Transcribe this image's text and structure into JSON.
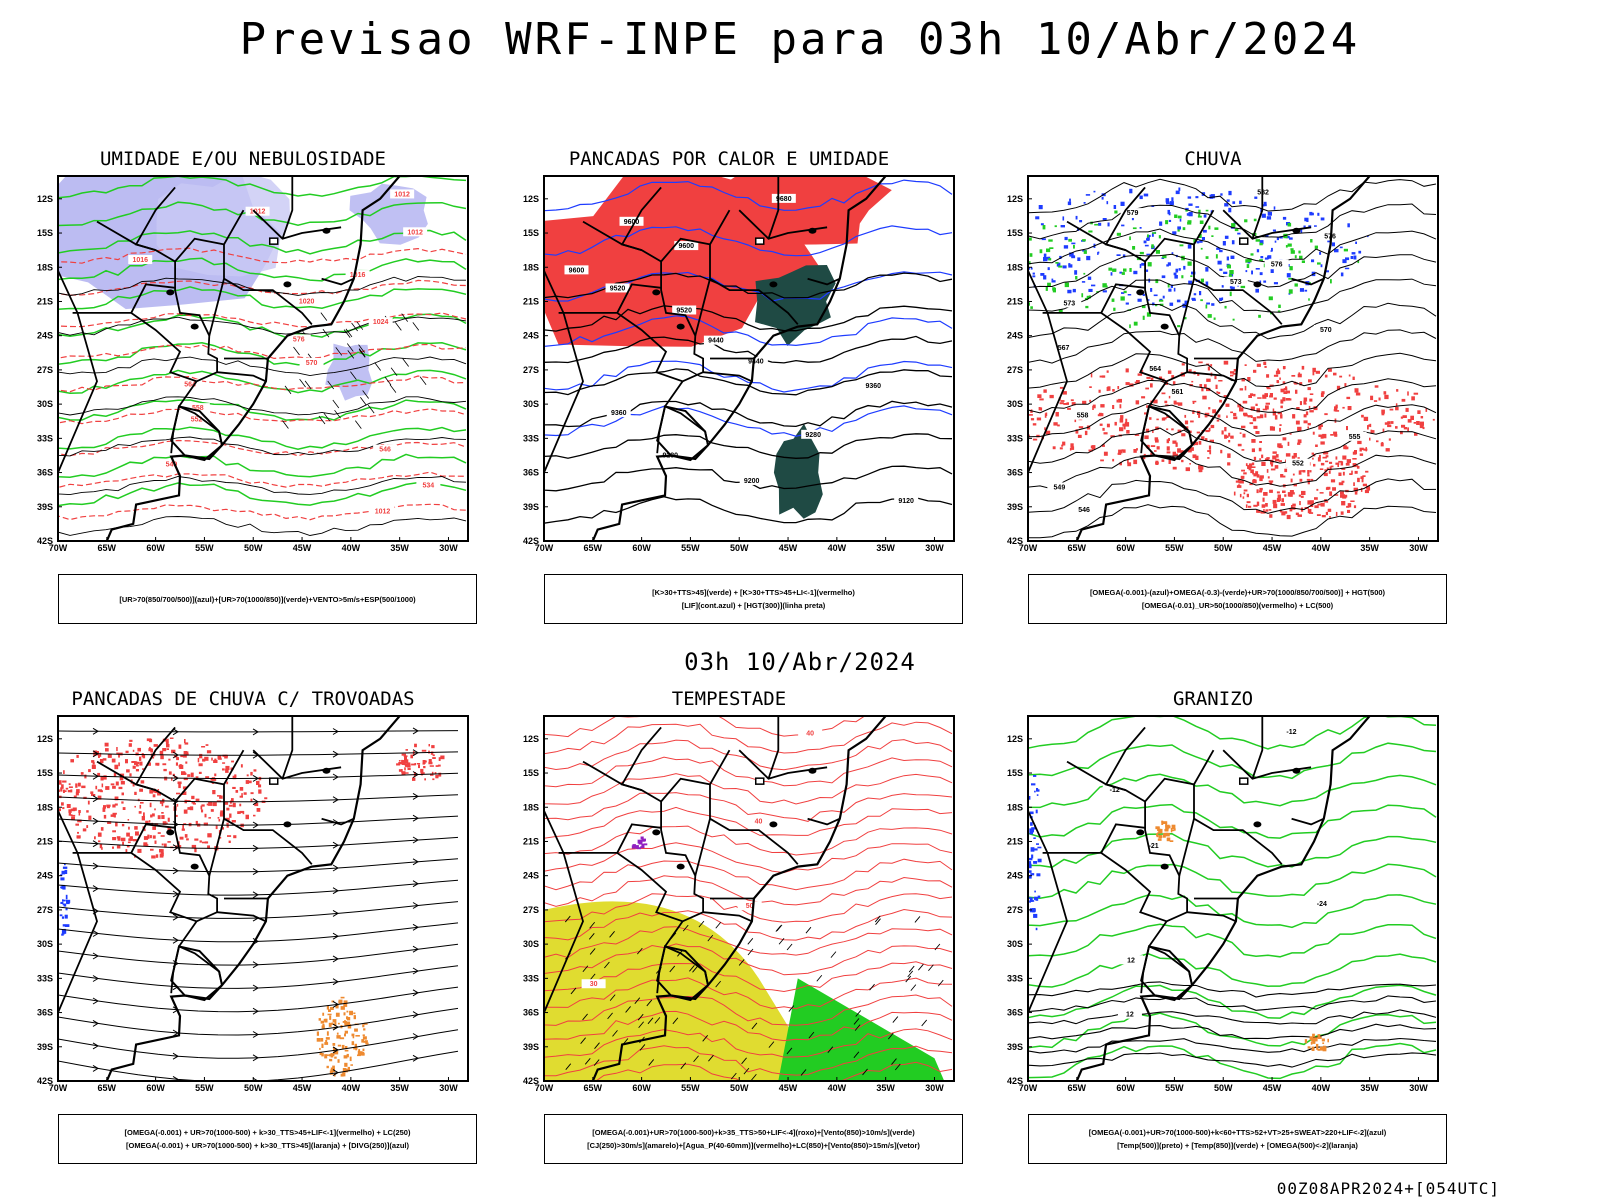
{
  "header": {
    "title": "Previsao WRF-INPE  para 03h 10/Abr/2024",
    "mid_date": "03h 10/Abr/2024",
    "run_info": "00Z08APR2024+[054UTC]"
  },
  "axes": {
    "lat_labels": [
      "12S",
      "15S",
      "18S",
      "21S",
      "24S",
      "27S",
      "30S",
      "33S",
      "36S",
      "39S",
      "42S"
    ],
    "lon_labels": [
      "70W",
      "65W",
      "60W",
      "55W",
      "50W",
      "45W",
      "40W",
      "35W",
      "30W"
    ]
  },
  "colors": {
    "red": "#f04040",
    "green": "#22cc22",
    "blue": "#1e3cff",
    "lavender": "#b0b0f0",
    "yellow": "#e0dc30",
    "darkteal": "#1f4a44",
    "orange": "#ee8a30",
    "purple": "#9020c0"
  },
  "panels": [
    {
      "id": "umidade",
      "title": "UMIDADE E/OU NEBULOSIDADE",
      "legend": [
        "[UR>70(850/700/500)](azul)+[UR>70(1000/850)](verde)+VENTO>5m/s+ESP(500/1000)"
      ],
      "labels": [
        "1012",
        "1012",
        "1012",
        "1016",
        "1016",
        "1020",
        "1024",
        "576",
        "570",
        "564",
        "558",
        "552",
        "546",
        "540",
        "534",
        "1012"
      ]
    },
    {
      "id": "pancadas-calor",
      "title": "PANCADAS POR CALOR E UMIDADE",
      "legend": [
        "[K>30+TTS>45](verde) + [K>30+TTS>45+LI<-1](vermelho)",
        "[LIF](cont.azul) + [HGT(300)](linha preta)"
      ],
      "labels": [
        "9680",
        "9600",
        "9600",
        "9600",
        "9520",
        "9520",
        "9440",
        "9440",
        "9360",
        "9360",
        "9280",
        "9280",
        "9200",
        "9120"
      ]
    },
    {
      "id": "chuva",
      "title": "CHUVA",
      "legend": [
        "[OMEGA(-0.001)-(azul)+OMEGA(-0.3)-(verde)+UR>70(1000/850/700/500)] + HGT(500)",
        "[OMEGA(-0.01)_UR>50(1000/850)(vermelho) + LC(500)"
      ],
      "labels": [
        "582",
        "579",
        "576",
        "576",
        "573",
        "573",
        "570",
        "567",
        "564",
        "561",
        "558",
        "555",
        "552",
        "549",
        "546"
      ]
    },
    {
      "id": "trovoadas",
      "title": "PANCADAS DE CHUVA C/ TROVOADAS",
      "legend": [
        "[OMEGA(-0.001) + UR>70(1000-500) + k>30_TTS>45+LIF<-1](vermelho) + LC(250)",
        "[OMEGA(-0.001) + UR>70(1000-500) + k>30_TTS>45](laranja) + [DIVG(250)](azul)"
      ],
      "labels": []
    },
    {
      "id": "tempestade",
      "title": "TEMPESTADE",
      "legend": [
        "[OMEGA(-0.001)+UR>70(1000-500)+k>35_TTS>50+LIF<-4](roxo)+[Vento(850)>10m/s](verde)",
        "[CJ(250)>30m/s](amarelo)+[Agua_P(40-60mm)](vermelho)+LC(850)+[Vento(850)>15m/s](vetor)"
      ],
      "labels": [
        "40",
        "40",
        "50",
        "30"
      ]
    },
    {
      "id": "granizo",
      "title": "GRANIZO",
      "legend": [
        "[OMEGA(-0.001)+UR>70(1000-500)+k<60+TTS>52+VT>25+SWEAT>220+LIF<-2](azul)",
        "[Temp(500)](preto) + [Temp(850)](verde) + [OMEGA(500)<-2](laranja)"
      ],
      "labels": [
        "-12",
        "-12",
        "-21",
        "-24",
        "12",
        "12"
      ]
    }
  ]
}
